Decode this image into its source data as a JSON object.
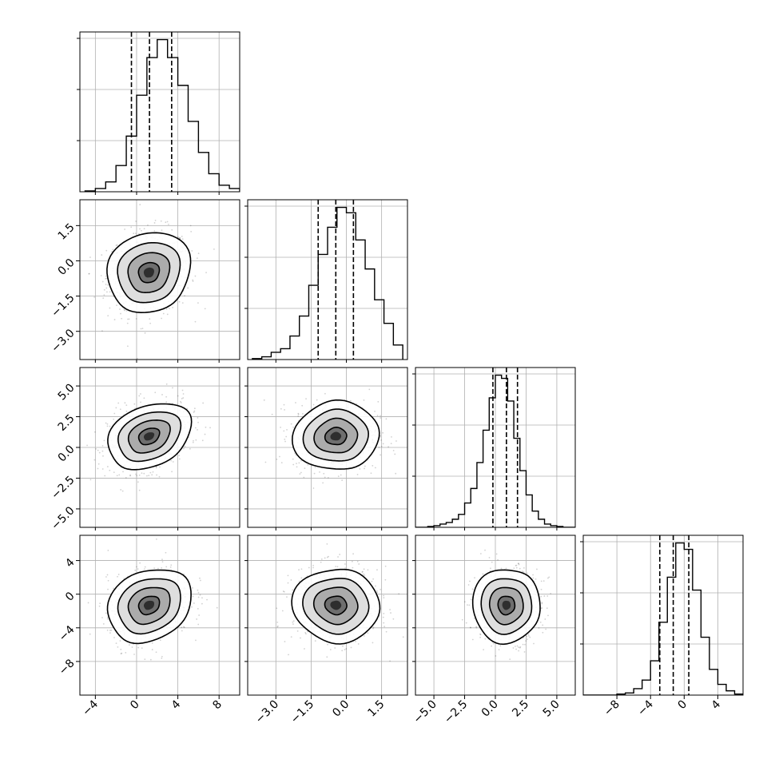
{
  "chart_data": {
    "type": "corner",
    "grid": true,
    "params": [
      {
        "range": [
          -5.5,
          10
        ],
        "ticks": [
          -4,
          0,
          4,
          8
        ],
        "tick_labels": [
          "−4",
          "0",
          "4",
          "8"
        ],
        "hist": {
          "bins": [
            -5,
            -4,
            -3,
            -2,
            -1,
            0,
            1,
            2,
            3,
            4,
            5,
            6,
            7,
            8,
            9,
            10
          ],
          "counts": [
            0.005,
            0.02,
            0.06,
            0.16,
            0.34,
            0.59,
            0.82,
            0.93,
            0.82,
            0.65,
            0.43,
            0.24,
            0.11,
            0.04,
            0.02
          ],
          "quantiles": [
            -0.5,
            1.25,
            3.4
          ]
        }
      },
      {
        "range": [
          -4.2,
          2.6
        ],
        "ticks": [
          -3.0,
          -1.5,
          0.0,
          1.5
        ],
        "tick_labels": [
          "−3.0",
          "−1.5",
          "0.0",
          "1.5"
        ],
        "hist": {
          "bins": [
            -4,
            -3.6,
            -3.2,
            -2.8,
            -2.4,
            -2.0,
            -1.6,
            -1.2,
            -0.8,
            -0.4,
            0.0,
            0.4,
            0.8,
            1.2,
            1.6,
            2.0,
            2.4
          ],
          "counts": [
            0.005,
            0.015,
            0.04,
            0.06,
            0.13,
            0.24,
            0.41,
            0.58,
            0.73,
            0.84,
            0.81,
            0.66,
            0.5,
            0.33,
            0.2,
            0.08
          ],
          "quantiles": [
            -1.2,
            -0.45,
            0.3
          ]
        }
      },
      {
        "range": [
          -6.5,
          6.5
        ],
        "ticks": [
          -5.0,
          -2.5,
          0.0,
          2.5,
          5.0
        ],
        "tick_labels": [
          "−5.0",
          "−2.5",
          "0.0",
          "2.5",
          "5.0"
        ],
        "hist": {
          "bins": [
            -6.5,
            -6,
            -5.5,
            -5,
            -4.5,
            -4,
            -3.5,
            -3,
            -2.5,
            -2,
            -1.5,
            -1,
            -0.5,
            0,
            0.5,
            1,
            1.5,
            2,
            2.5,
            3,
            3.5,
            4,
            4.5,
            5,
            5.5,
            6,
            6.5
          ],
          "counts": [
            0,
            0,
            0.005,
            0.01,
            0.02,
            0.03,
            0.05,
            0.08,
            0.15,
            0.24,
            0.4,
            0.6,
            0.8,
            0.94,
            0.92,
            0.78,
            0.55,
            0.35,
            0.2,
            0.1,
            0.05,
            0.02,
            0.01,
            0.005,
            0,
            0
          ],
          "quantiles": [
            -0.2,
            0.9,
            1.8
          ]
        }
      },
      {
        "range": [
          -12,
          7
        ],
        "ticks": [
          -8,
          -4,
          0,
          4
        ],
        "tick_labels": [
          "−8",
          "−4",
          "0",
          "4"
        ],
        "hist": {
          "bins": [
            -12,
            -11,
            -10,
            -9,
            -8,
            -7,
            -6,
            -5,
            -4,
            -3,
            -2,
            -1,
            0,
            1,
            2,
            3,
            4,
            5,
            6,
            7
          ],
          "counts": [
            0,
            0,
            0,
            0,
            0.005,
            0.01,
            0.03,
            0.07,
            0.16,
            0.34,
            0.55,
            0.71,
            0.68,
            0.49,
            0.27,
            0.12,
            0.05,
            0.02,
            0.005
          ],
          "quantiles": [
            -2.9,
            -1.3,
            0.55
          ]
        }
      }
    ],
    "cross": [
      {
        "row": 1,
        "col": 0,
        "mean": [
          1.2,
          -0.5
        ],
        "sd": [
          2.0,
          0.9
        ],
        "rho": 0.1
      },
      {
        "row": 2,
        "col": 0,
        "mean": [
          1.2,
          0.9
        ],
        "sd": [
          2.0,
          1.4
        ],
        "rho": 0.3
      },
      {
        "row": 2,
        "col": 1,
        "mean": [
          -0.45,
          0.9
        ],
        "sd": [
          0.9,
          1.4
        ],
        "rho": 0.0
      },
      {
        "row": 3,
        "col": 0,
        "mean": [
          1.2,
          -1.3
        ],
        "sd": [
          2.0,
          2.2
        ],
        "rho": 0.25
      },
      {
        "row": 3,
        "col": 1,
        "mean": [
          -0.45,
          -1.3
        ],
        "sd": [
          0.9,
          2.2
        ],
        "rho": 0.0
      },
      {
        "row": 3,
        "col": 2,
        "mean": [
          0.9,
          -1.3
        ],
        "sd": [
          1.4,
          2.2
        ],
        "rho": 0.05
      }
    ],
    "contour_levels_sigma": [
      0.5,
      1.0,
      1.5,
      2.0
    ],
    "n_scatter_points": 700
  }
}
